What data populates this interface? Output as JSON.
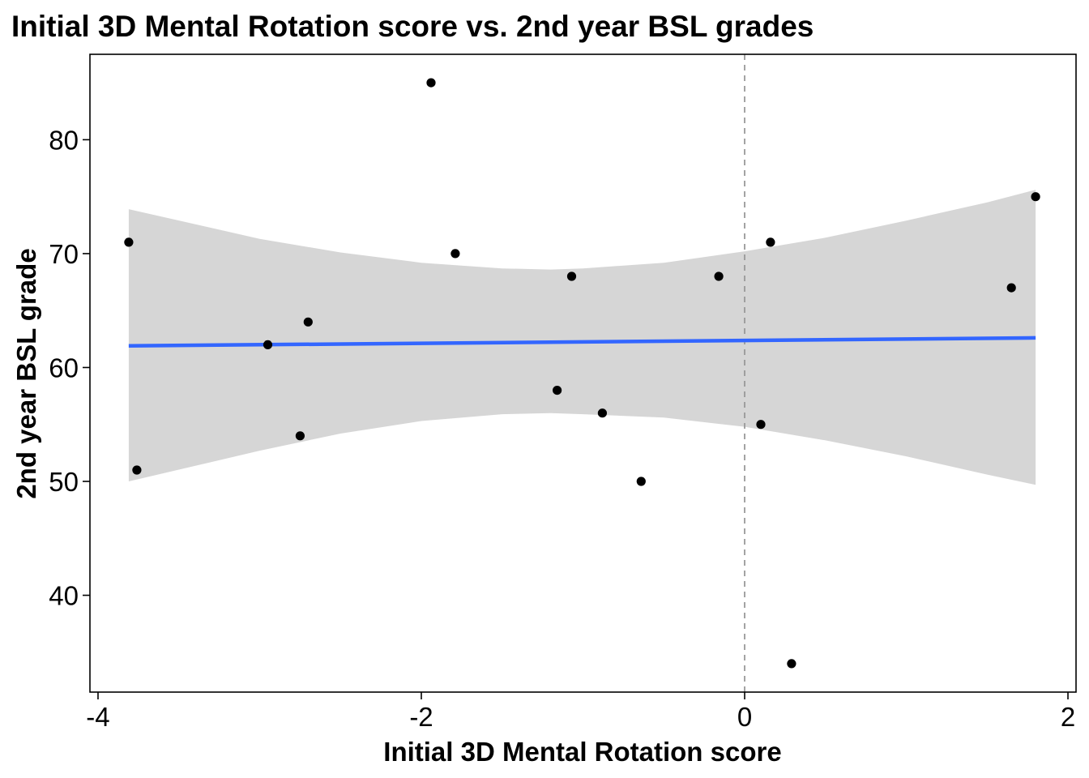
{
  "chart_data": {
    "type": "scatter",
    "title": "Initial 3D Mental Rotation score vs. 2nd year BSL grades",
    "xlabel": "Initial 3D Mental Rotation score",
    "ylabel": "2nd year BSL grade",
    "xlim": [
      -4.05,
      2.05
    ],
    "ylim": [
      31.5,
      87.5
    ],
    "x_ticks": [
      -4,
      -2,
      0,
      2
    ],
    "x_tick_labels": [
      "-4",
      "-2",
      "0",
      "2"
    ],
    "y_ticks": [
      40,
      50,
      60,
      70,
      80
    ],
    "y_tick_labels": [
      "40",
      "50",
      "60",
      "70",
      "80"
    ],
    "grid": false,
    "vline": {
      "x": 0,
      "style": "dashed",
      "color": "#999999"
    },
    "points": [
      {
        "x": -3.81,
        "y": 71
      },
      {
        "x": -3.76,
        "y": 51
      },
      {
        "x": -2.95,
        "y": 62
      },
      {
        "x": -2.75,
        "y": 54
      },
      {
        "x": -2.7,
        "y": 64
      },
      {
        "x": -1.94,
        "y": 85
      },
      {
        "x": -1.79,
        "y": 70
      },
      {
        "x": -1.16,
        "y": 58
      },
      {
        "x": -1.07,
        "y": 68
      },
      {
        "x": -0.88,
        "y": 56
      },
      {
        "x": -0.64,
        "y": 50
      },
      {
        "x": -0.16,
        "y": 68
      },
      {
        "x": 0.1,
        "y": 55
      },
      {
        "x": 0.16,
        "y": 71
      },
      {
        "x": 0.29,
        "y": 34
      },
      {
        "x": 1.65,
        "y": 67
      },
      {
        "x": 1.8,
        "y": 75
      }
    ],
    "fit_line": {
      "x": [
        -3.81,
        1.8
      ],
      "y": [
        61.9,
        62.6
      ],
      "color": "#3366ff"
    },
    "confidence_band": {
      "color": "#d6d6d6",
      "x": [
        -3.81,
        -3.0,
        -2.5,
        -2.0,
        -1.5,
        -1.2,
        -1.0,
        -0.5,
        0.0,
        0.5,
        1.0,
        1.5,
        1.8
      ],
      "upper": [
        73.9,
        71.3,
        70.1,
        69.2,
        68.7,
        68.6,
        68.7,
        69.2,
        70.2,
        71.4,
        72.9,
        74.5,
        75.6
      ],
      "lower": [
        50.0,
        52.7,
        54.2,
        55.3,
        55.9,
        56.0,
        55.9,
        55.6,
        54.8,
        53.6,
        52.2,
        50.6,
        49.7
      ]
    },
    "series_colors": {
      "points": "#000000"
    }
  }
}
